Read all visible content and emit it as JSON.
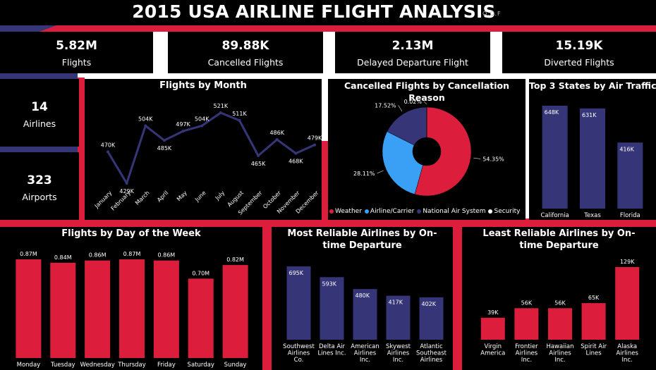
{
  "title": "2015 USA AIRLINE FLIGHT ANALYSIS",
  "subtitle": "O.O.F",
  "colors": {
    "background": "#000000",
    "red": "#dc1e3c",
    "navy": "#353578",
    "blue": "#3aa0f5",
    "white": "#ffffff"
  },
  "kpis": {
    "flights": {
      "value": "5.82M",
      "label": "Flights"
    },
    "cancelled": {
      "value": "89.88K",
      "label": "Cancelled Flights"
    },
    "delayed": {
      "value": "2.13M",
      "label": "Delayed Departure Flight"
    },
    "diverted": {
      "value": "15.19K",
      "label": "Diverted Flights"
    },
    "airlines": {
      "value": "14",
      "label": "Airlines"
    },
    "airports": {
      "value": "323",
      "label": "Airports"
    }
  },
  "chart_data": [
    {
      "id": "month",
      "type": "line",
      "title": "Flights by Month",
      "categories": [
        "January",
        "February",
        "March",
        "April",
        "May",
        "June",
        "July",
        "August",
        "September",
        "October",
        "November",
        "December"
      ],
      "values": [
        470,
        429,
        504,
        485,
        497,
        504,
        521,
        511,
        465,
        486,
        468,
        479
      ],
      "labels": [
        "470K",
        "429K",
        "504K",
        "485K",
        "497K",
        "504K",
        "521K",
        "511K",
        "465K",
        "486K",
        "468K",
        "479K"
      ],
      "color": "#353578"
    },
    {
      "id": "cancel",
      "type": "pie",
      "title": "Cancelled Flights by Cancellation Reason",
      "slices": [
        {
          "name": "Weather",
          "value": 54.35,
          "label": "54.35%",
          "color": "#dc1e3c"
        },
        {
          "name": "Airline/Carrier",
          "value": 28.11,
          "label": "28.11%",
          "color": "#3aa0f5"
        },
        {
          "name": "National Air System",
          "value": 17.52,
          "label": "17.52%",
          "color": "#353578"
        },
        {
          "name": "Security",
          "value": 0.02,
          "label": "0.02%",
          "color": "#ffffff"
        }
      ],
      "legend": "bottom"
    },
    {
      "id": "states",
      "type": "bar",
      "title": "Top 3 States by Air Traffic",
      "categories": [
        "California",
        "Texas",
        "Florida"
      ],
      "values": [
        648,
        631,
        416
      ],
      "labels": [
        "648K",
        "631K",
        "416K"
      ],
      "color": "#353578"
    },
    {
      "id": "dow",
      "type": "bar",
      "title": "Flights by Day of the Week",
      "categories": [
        "Monday",
        "Tuesday",
        "Wednesday",
        "Thursday",
        "Friday",
        "Saturday",
        "Sunday"
      ],
      "values": [
        0.87,
        0.84,
        0.86,
        0.87,
        0.86,
        0.7,
        0.82
      ],
      "labels": [
        "0.87M",
        "0.84M",
        "0.86M",
        "0.87M",
        "0.86M",
        "0.70M",
        "0.82M"
      ],
      "color": "#dc1e3c"
    },
    {
      "id": "most",
      "type": "bar",
      "title": "Most Reliable Airlines by On-time Departure",
      "categories": [
        "Southwest Airlines Co.",
        "Delta Air Lines Inc.",
        "American Airlines Inc.",
        "Skywest Airlines Inc.",
        "Atlantic Southeast Airlines"
      ],
      "categories_lines": [
        [
          "Southwest",
          "Airlines",
          "Co."
        ],
        [
          "Delta Air",
          "Lines Inc."
        ],
        [
          "American",
          "Airlines",
          "Inc."
        ],
        [
          "Skywest",
          "Airlines",
          "Inc."
        ],
        [
          "Atlantic",
          "Southeast",
          "Airlines"
        ]
      ],
      "values": [
        695,
        593,
        480,
        417,
        402
      ],
      "labels": [
        "695K",
        "593K",
        "480K",
        "417K",
        "402K"
      ],
      "color": "#353578"
    },
    {
      "id": "least",
      "type": "bar",
      "title": "Least Reliable Airlines by On-time Departure",
      "categories": [
        "Virgin America",
        "Frontier Airlines Inc.",
        "Hawaiian Airlines Inc.",
        "Spirit Air Lines",
        "Alaska Airlines Inc."
      ],
      "categories_lines": [
        [
          "Virgin",
          "America"
        ],
        [
          "Frontier",
          "Airlines",
          "Inc."
        ],
        [
          "Hawaiian",
          "Airlines",
          "Inc."
        ],
        [
          "Spirit Air",
          "Lines"
        ],
        [
          "Alaska",
          "Airlines",
          "Inc."
        ]
      ],
      "values": [
        39,
        56,
        56,
        65,
        129
      ],
      "labels": [
        "39K",
        "56K",
        "56K",
        "65K",
        "129K"
      ],
      "color": "#dc1e3c"
    }
  ]
}
